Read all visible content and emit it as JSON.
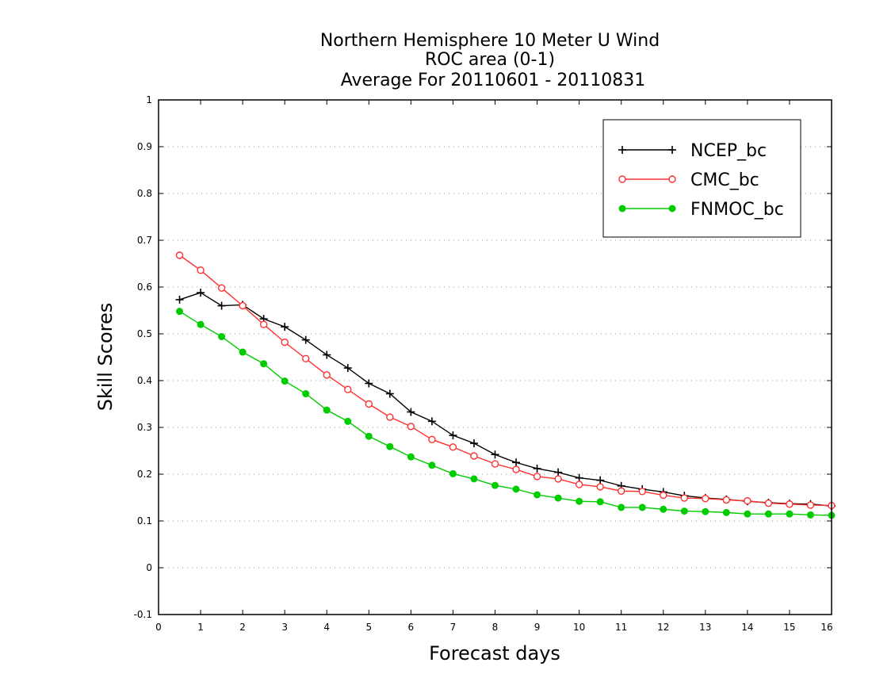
{
  "chart_data": {
    "type": "line",
    "title": [
      "Northern Hemisphere 10 Meter U Wind",
      "ROC area (0-1)",
      "Average For 20110601 - 20110831"
    ],
    "xlabel": "Forecast days",
    "ylabel": "Skill Scores",
    "xlim": [
      0,
      16
    ],
    "ylim": [
      -0.1,
      1
    ],
    "x_ticks": [
      0,
      1,
      2,
      3,
      4,
      5,
      6,
      7,
      8,
      9,
      10,
      11,
      12,
      13,
      14,
      15,
      16
    ],
    "x_tick_labels": [
      "0",
      "1",
      "2",
      "3",
      "4",
      "5",
      "6",
      "7",
      "8",
      "9",
      "10",
      "11",
      "12",
      "13",
      "14",
      "15",
      "16"
    ],
    "y_ticks": [
      -0.1,
      0,
      0.1,
      0.2,
      0.3,
      0.4,
      0.5,
      0.6,
      0.7,
      0.8,
      0.9,
      1
    ],
    "y_tick_labels": [
      "-0.1",
      "0",
      "0.1",
      "0.2",
      "0.3",
      "0.4",
      "0.5",
      "0.6",
      "0.7",
      "0.8",
      "0.9",
      "1"
    ],
    "grid": "horizontal-dotted",
    "legend_position": "top-right",
    "x": [
      0.5,
      1,
      1.5,
      2,
      2.5,
      3,
      3.5,
      4,
      4.5,
      5,
      5.5,
      6,
      6.5,
      7,
      7.5,
      8,
      8.5,
      9,
      9.5,
      10,
      10.5,
      11,
      11.5,
      12,
      12.5,
      13,
      13.5,
      14,
      14.5,
      15,
      15.5,
      16
    ],
    "series": [
      {
        "name": "NCEP_bc",
        "color": "#000000",
        "marker": "plus",
        "values": [
          0.573,
          0.588,
          0.56,
          0.562,
          0.532,
          0.515,
          0.487,
          0.455,
          0.427,
          0.394,
          0.372,
          0.333,
          0.313,
          0.283,
          0.266,
          0.242,
          0.225,
          0.212,
          0.204,
          0.192,
          0.187,
          0.175,
          0.168,
          0.162,
          0.154,
          0.149,
          0.146,
          0.142,
          0.139,
          0.137,
          0.136,
          0.132
        ]
      },
      {
        "name": "CMC_bc",
        "color": "#ff3030",
        "marker": "open-circle",
        "values": [
          0.668,
          0.636,
          0.598,
          0.56,
          0.52,
          0.482,
          0.447,
          0.412,
          0.381,
          0.35,
          0.322,
          0.302,
          0.274,
          0.258,
          0.239,
          0.222,
          0.21,
          0.195,
          0.19,
          0.178,
          0.173,
          0.164,
          0.163,
          0.155,
          0.149,
          0.148,
          0.145,
          0.143,
          0.138,
          0.136,
          0.134,
          0.133
        ]
      },
      {
        "name": "FNMOC_bc",
        "color": "#00cc00",
        "marker": "filled-circle",
        "values": [
          0.548,
          0.52,
          0.494,
          0.461,
          0.436,
          0.399,
          0.372,
          0.337,
          0.313,
          0.281,
          0.259,
          0.237,
          0.219,
          0.201,
          0.19,
          0.176,
          0.168,
          0.156,
          0.149,
          0.142,
          0.141,
          0.129,
          0.129,
          0.125,
          0.121,
          0.12,
          0.118,
          0.115,
          0.115,
          0.115,
          0.113,
          0.112
        ]
      }
    ]
  }
}
